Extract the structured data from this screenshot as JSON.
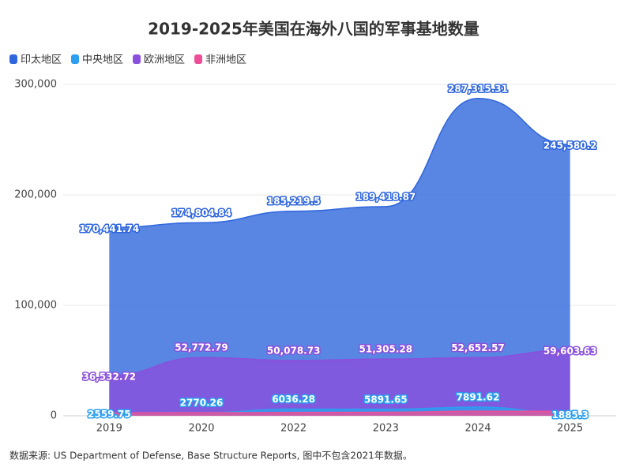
{
  "chart_data": {
    "type": "area",
    "title": "2019-2025年美国在海外八国的军事基地数量",
    "source": "数据来源: US Department of Defense, Base Structure Reports, 图中不包含2021年数据。",
    "categories": [
      "2019",
      "2020",
      "2022",
      "2023",
      "2024",
      "2025"
    ],
    "series": [
      {
        "name": "印太地区",
        "color": "#2f66dc",
        "values": [
          170441.74,
          174804.84,
          185219.5,
          189418.87,
          287315.31,
          245580.2
        ],
        "value_labels": [
          "170,441.74",
          "174,804.84",
          "185,219.5",
          "189,418.87",
          "287,315.31",
          "245,580.2"
        ]
      },
      {
        "name": "中央地区",
        "color": "#2b9ff0",
        "values": [
          2559.75,
          2770.26,
          6036.28,
          5891.65,
          7891.62,
          1885.3
        ],
        "value_labels": [
          "2559.75",
          "2770.26",
          "6036.28",
          "5891.65",
          "7891.62",
          "1885.3"
        ]
      },
      {
        "name": "欧洲地区",
        "color": "#8a4fdc",
        "values": [
          36532.72,
          52772.79,
          50078.73,
          51305.28,
          52652.57,
          59603.63
        ],
        "value_labels": [
          "36,532.72",
          "52,772.79",
          "50,078.73",
          "51,305.28",
          "52,652.57",
          "59,603.63"
        ]
      },
      {
        "name": "非洲地区",
        "color": "#ec4f96",
        "values": [
          2500,
          2800,
          3000,
          3200,
          4200,
          4000
        ]
      }
    ],
    "ylim": [
      0,
      300000
    ],
    "yticks": [
      0,
      {
        "value": 100000,
        "label": "100,000"
      },
      {
        "value": 200000,
        "label": "200,000"
      },
      {
        "value": 300000,
        "label": "300,000"
      }
    ],
    "grid": true
  }
}
